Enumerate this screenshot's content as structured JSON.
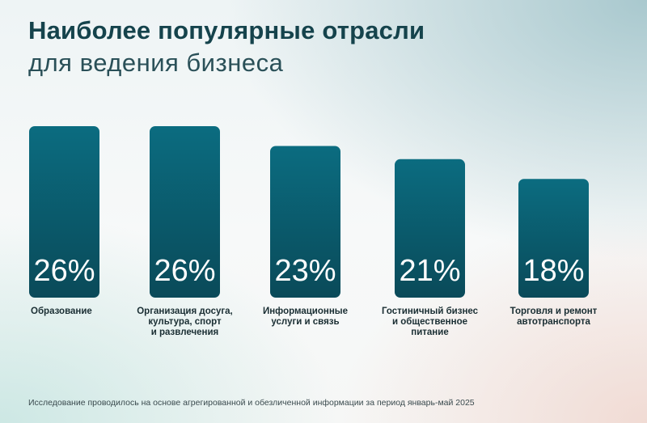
{
  "header": {
    "title": "Наиболее популярные отрасли",
    "subtitle": "для ведения бизнеса"
  },
  "colors": {
    "bar_top": "#0b6c80",
    "bar_bottom": "#0a4a59",
    "title": "#15434c"
  },
  "chart_data": {
    "type": "bar",
    "title": "Наиболее популярные отрасли для ведения бизнеса",
    "categories": [
      "Образование",
      "Организация досуга,\nкультура, спорт\nи развлечения",
      "Информационные\nуслуги и связь",
      "Гостиничный бизнес\nи общественное\nпитание",
      "Торговля и ремонт\nавтотранспорта"
    ],
    "values": [
      26,
      26,
      23,
      21,
      18
    ],
    "value_labels": [
      "26%",
      "26%",
      "23%",
      "21%",
      "18%"
    ],
    "unit": "%",
    "ylim": [
      0,
      26
    ],
    "grid": false,
    "legend": "none"
  },
  "footnote": "Исследование проводилось на основе агрегированной и обезличенной информации за период январь-май 2025"
}
